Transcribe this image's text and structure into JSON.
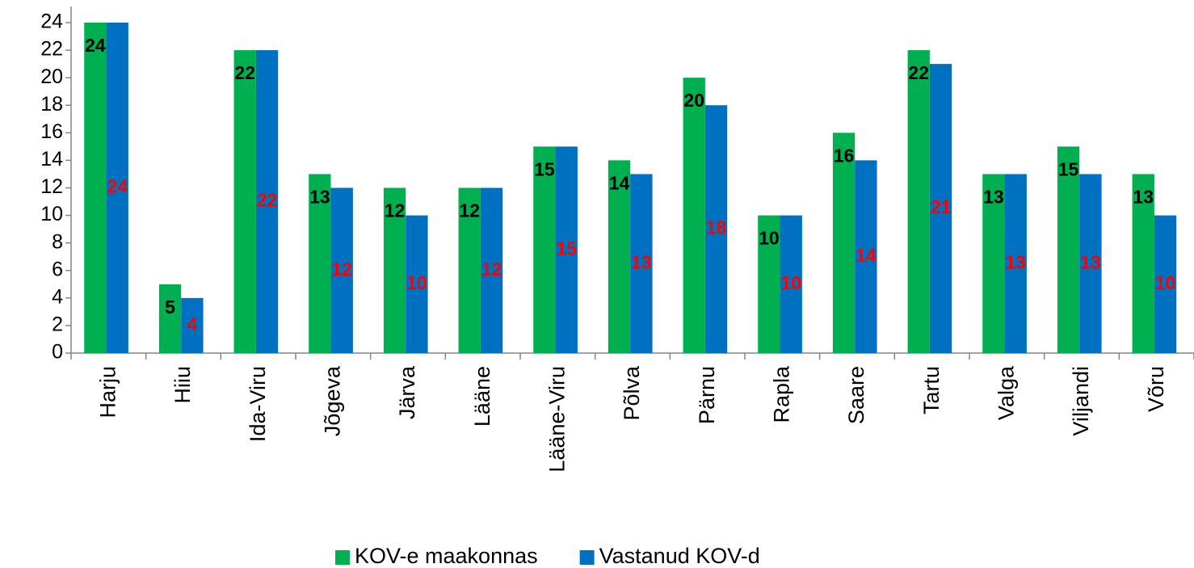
{
  "chart_data": {
    "type": "bar",
    "categories": [
      "Harju",
      "Hiiu",
      "Ida-Viru",
      "Jõgeva",
      "Järva",
      "Lääne",
      "Lääne-Viru",
      "Põlva",
      "Pärnu",
      "Rapla",
      "Saare",
      "Tartu",
      "Valga",
      "Viljandi",
      "Võru"
    ],
    "series": [
      {
        "name": "KOV-e maakonnas",
        "color": "#00b050",
        "label_color": "#000000",
        "values": [
          24,
          5,
          22,
          13,
          12,
          12,
          15,
          14,
          20,
          10,
          16,
          22,
          13,
          15,
          13
        ]
      },
      {
        "name": "Vastanud KOV-d",
        "color": "#0070c0",
        "label_color": "#ff0000",
        "values": [
          24,
          4,
          22,
          12,
          10,
          12,
          15,
          13,
          18,
          10,
          14,
          21,
          13,
          13,
          10
        ]
      }
    ],
    "ylim": [
      0,
      24
    ],
    "yticks": [
      0,
      2,
      4,
      6,
      8,
      10,
      12,
      14,
      16,
      18,
      20,
      22,
      24
    ],
    "grid": false,
    "legend": "bottom"
  }
}
